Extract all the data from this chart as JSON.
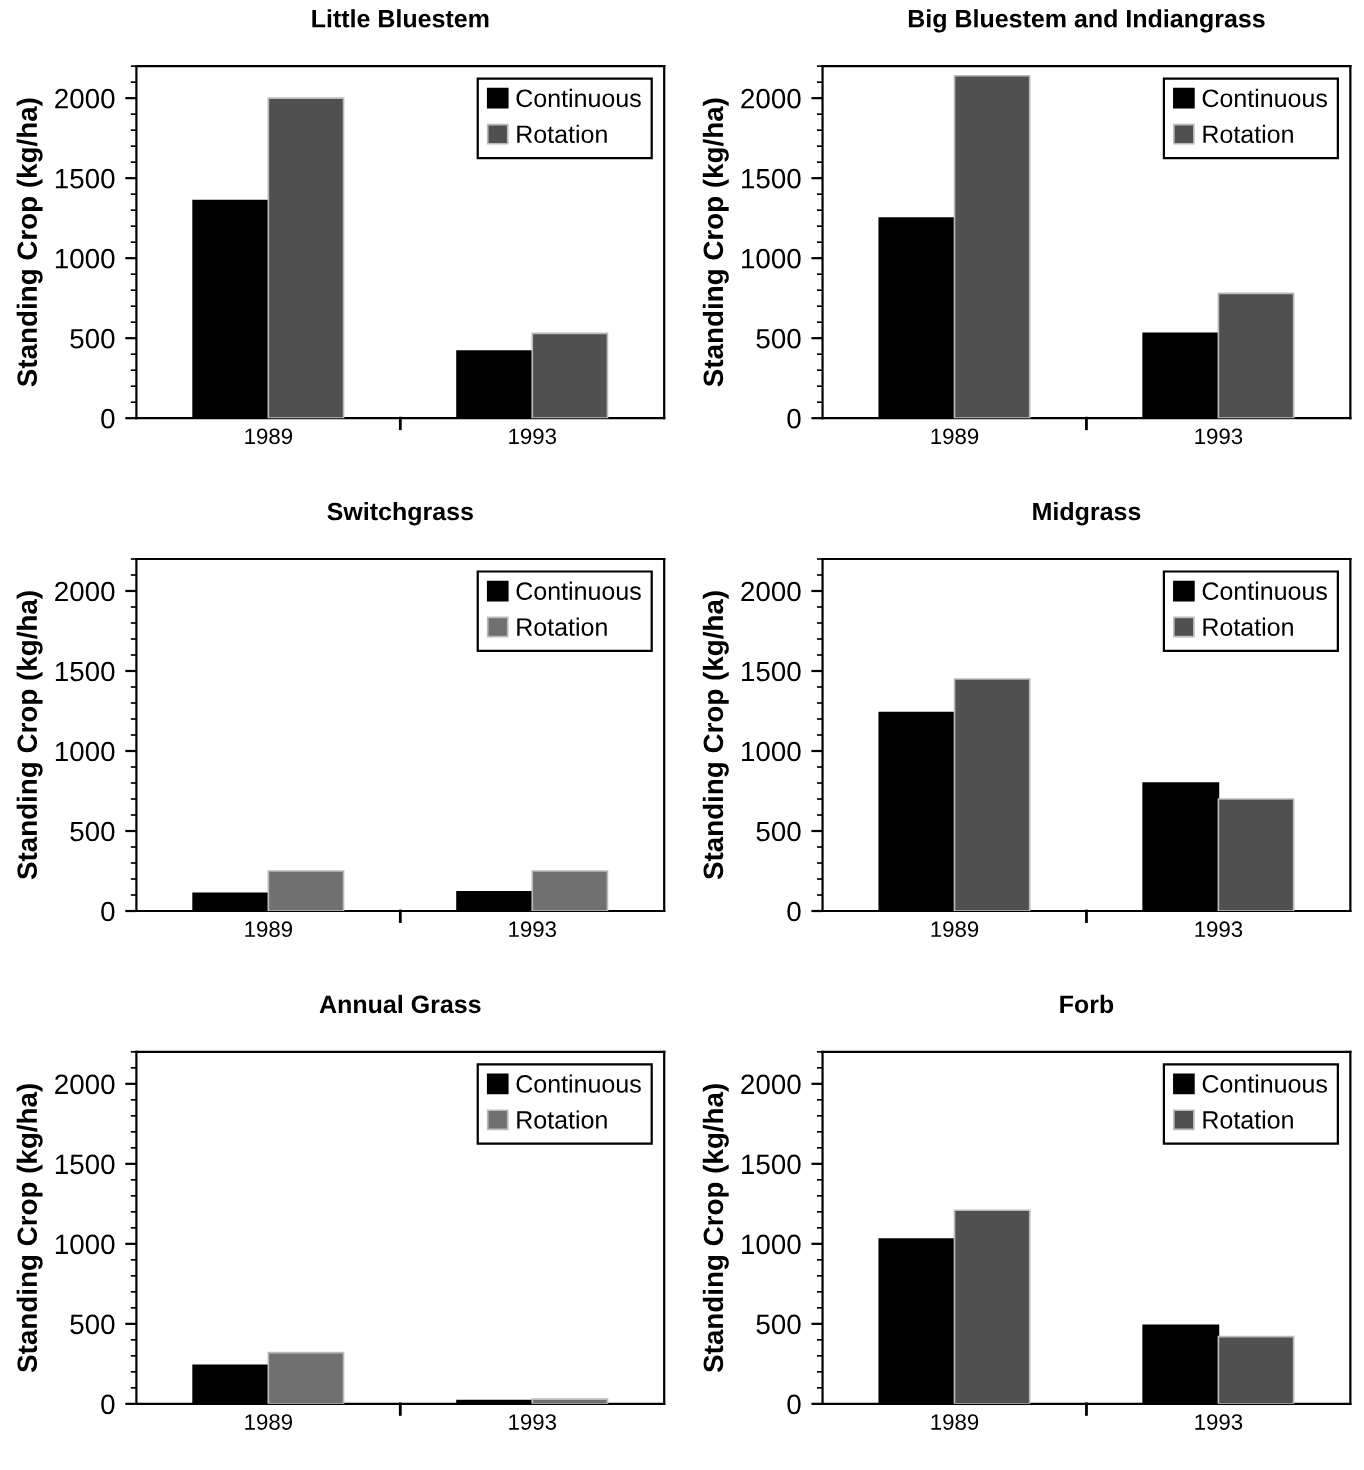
{
  "chart_data": [
    {
      "type": "bar",
      "title": "Little Bluestem",
      "ylabel": "Standing Crop (kg/ha)",
      "categories": [
        "1989",
        "1993"
      ],
      "series": [
        {
          "name": "Continuous",
          "color": "#000000",
          "values": [
            1360,
            420
          ]
        },
        {
          "name": "Rotation",
          "color": "#505050",
          "values": [
            2000,
            530
          ]
        }
      ],
      "ylim": [
        0,
        2200
      ],
      "yticks": [
        0,
        500,
        1000,
        1500,
        2000
      ],
      "legend": "top right",
      "grid": false
    },
    {
      "type": "bar",
      "title": "Big Bluestem and Indiangrass",
      "ylabel": "Standing Crop (kg/ha)",
      "categories": [
        "1989",
        "1993"
      ],
      "series": [
        {
          "name": "Continuous",
          "color": "#000000",
          "values": [
            1250,
            530
          ]
        },
        {
          "name": "Rotation",
          "color": "#505050",
          "values": [
            2140,
            780
          ]
        }
      ],
      "ylim": [
        0,
        2200
      ],
      "yticks": [
        0,
        500,
        1000,
        1500,
        2000
      ],
      "legend": "top right",
      "grid": false
    },
    {
      "type": "bar",
      "title": "Switchgrass",
      "ylabel": "Standing Crop (kg/ha)",
      "categories": [
        "1989",
        "1993"
      ],
      "series": [
        {
          "name": "Continuous",
          "color": "#000000",
          "values": [
            110,
            120
          ]
        },
        {
          "name": "Rotation",
          "color": "#707070",
          "values": [
            250,
            250
          ]
        }
      ],
      "ylim": [
        0,
        2200
      ],
      "yticks": [
        0,
        500,
        1000,
        1500,
        2000
      ],
      "legend": "top right",
      "grid": false
    },
    {
      "type": "bar",
      "title": "Midgrass",
      "ylabel": "Standing Crop (kg/ha)",
      "categories": [
        "1989",
        "1993"
      ],
      "series": [
        {
          "name": "Continuous",
          "color": "#000000",
          "values": [
            1240,
            800
          ]
        },
        {
          "name": "Rotation",
          "color": "#505050",
          "values": [
            1450,
            700
          ]
        }
      ],
      "ylim": [
        0,
        2200
      ],
      "yticks": [
        0,
        500,
        1000,
        1500,
        2000
      ],
      "legend": "top right",
      "grid": false
    },
    {
      "type": "bar",
      "title": "Annual Grass",
      "ylabel": "Standing Crop (kg/ha)",
      "categories": [
        "1989",
        "1993"
      ],
      "series": [
        {
          "name": "Continuous",
          "color": "#000000",
          "values": [
            240,
            20
          ]
        },
        {
          "name": "Rotation",
          "color": "#707070",
          "values": [
            320,
            30
          ]
        }
      ],
      "ylim": [
        0,
        2200
      ],
      "yticks": [
        0,
        500,
        1000,
        1500,
        2000
      ],
      "legend": "top right",
      "grid": false
    },
    {
      "type": "bar",
      "title": "Forb",
      "ylabel": "Standing Crop (kg/ha)",
      "categories": [
        "1989",
        "1993"
      ],
      "series": [
        {
          "name": "Continuous",
          "color": "#000000",
          "values": [
            1030,
            490
          ]
        },
        {
          "name": "Rotation",
          "color": "#505050",
          "values": [
            1210,
            420
          ]
        }
      ],
      "ylim": [
        0,
        2200
      ],
      "yticks": [
        0,
        500,
        1000,
        1500,
        2000
      ],
      "legend": "top right",
      "grid": false
    }
  ]
}
